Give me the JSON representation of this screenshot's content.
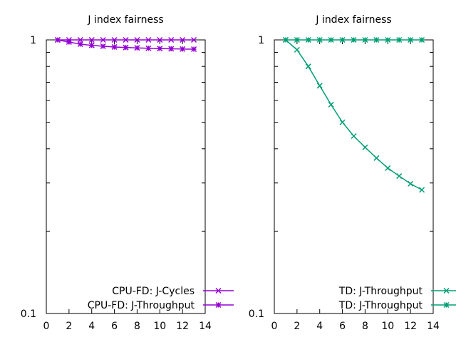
{
  "chart_data": [
    {
      "type": "line",
      "title": "J index fairness",
      "xlabel": "",
      "ylabel": "",
      "xlim": [
        0,
        14
      ],
      "ylim": [
        0.1,
        1
      ],
      "yscale": "log",
      "xticks": [
        0,
        2,
        4,
        6,
        8,
        10,
        12,
        14
      ],
      "yticks": [
        {
          "value": 0.1,
          "label": "0.1"
        },
        {
          "value": 1,
          "label": "1"
        }
      ],
      "grid": false,
      "legend_position": "bottom-right",
      "series": [
        {
          "name": "CPU-FD: J-Cycles",
          "color": "#9400d3",
          "marker": "x",
          "x": [
            1,
            2,
            3,
            4,
            5,
            6,
            7,
            8,
            9,
            10,
            11,
            12,
            13
          ],
          "y": [
            1,
            1,
            1,
            1,
            1,
            1,
            1,
            1,
            1,
            1,
            1,
            1,
            1
          ]
        },
        {
          "name": "CPU-FD: J-Throughput",
          "color": "#9400d3",
          "marker": "x-filled",
          "x": [
            1,
            2,
            3,
            4,
            5,
            6,
            7,
            8,
            9,
            10,
            11,
            12,
            13
          ],
          "y": [
            1,
            0.982,
            0.965,
            0.955,
            0.948,
            0.942,
            0.938,
            0.935,
            0.932,
            0.93,
            0.928,
            0.926,
            0.925
          ]
        }
      ]
    },
    {
      "type": "line",
      "title": "J index fairness",
      "xlabel": "",
      "ylabel": "",
      "xlim": [
        0,
        14
      ],
      "ylim": [
        0.1,
        1
      ],
      "yscale": "log",
      "xticks": [
        0,
        2,
        4,
        6,
        8,
        10,
        12,
        14
      ],
      "yticks": [
        {
          "value": 0.1,
          "label": "0.1"
        },
        {
          "value": 1,
          "label": "1"
        }
      ],
      "grid": false,
      "legend_position": "bottom-right",
      "series": [
        {
          "name": "TD: J-Throughput",
          "color": "#009e73",
          "marker": "x",
          "x": [
            1,
            2,
            3,
            4,
            5,
            6,
            7,
            8,
            9,
            10,
            11,
            12,
            13
          ],
          "y": [
            1,
            0.92,
            0.8,
            0.68,
            0.58,
            0.5,
            0.445,
            0.405,
            0.37,
            0.34,
            0.318,
            0.298,
            0.283
          ]
        },
        {
          "name": "TD: J-Throughput",
          "color": "#009e73",
          "marker": "x-filled",
          "x": [
            1,
            2,
            3,
            4,
            5,
            6,
            7,
            8,
            9,
            10,
            11,
            12,
            13
          ],
          "y": [
            1,
            1,
            1,
            1,
            1,
            1,
            1,
            1,
            1,
            1,
            1,
            1,
            1
          ]
        }
      ]
    }
  ]
}
